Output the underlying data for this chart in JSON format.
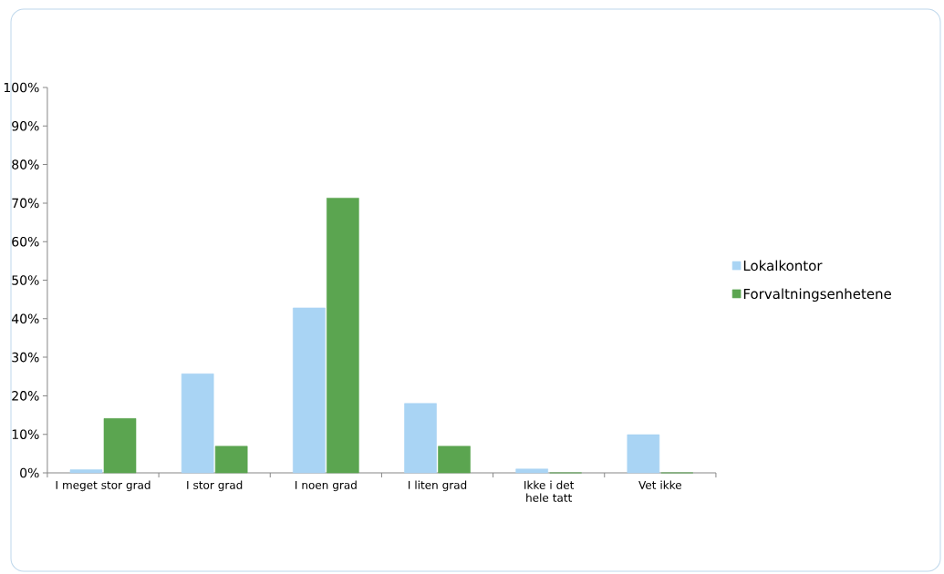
{
  "chart_data": {
    "type": "bar",
    "categories": [
      "I meget stor grad",
      "I stor grad",
      "I noen grad",
      "I liten grad",
      "Ikke i det hele tatt",
      "Vet ikke"
    ],
    "series": [
      {
        "name": "Lokalkontor",
        "color": "#a9d4f4",
        "values": [
          0.8,
          25.7,
          42.8,
          18.0,
          1.0,
          9.9
        ]
      },
      {
        "name": "Forvaltningsenhetene",
        "color": "#5ba550",
        "values": [
          14.1,
          6.9,
          71.3,
          6.9,
          0,
          0
        ]
      }
    ],
    "ylim": [
      0,
      100
    ],
    "yticks": [
      {
        "value": 0,
        "label": "0%"
      },
      {
        "value": 10,
        "label": "10%"
      },
      {
        "value": 20,
        "label": "20%"
      },
      {
        "value": 30,
        "label": "30%"
      },
      {
        "value": 40,
        "label": "40%"
      },
      {
        "value": 50,
        "label": "50%"
      },
      {
        "value": 60,
        "label": "60%"
      },
      {
        "value": 70,
        "label": "70%"
      },
      {
        "value": 80,
        "label": "80%"
      },
      {
        "value": 90,
        "label": "90%"
      },
      {
        "value": 100,
        "label": "100%"
      }
    ],
    "grid": false,
    "legend": "right"
  }
}
